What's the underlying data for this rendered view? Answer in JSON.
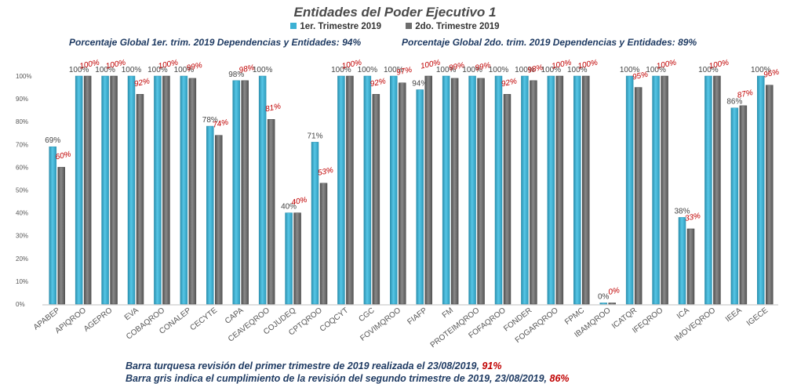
{
  "chart_data": {
    "type": "bar",
    "title": "Entidades del Poder Ejecutivo 1",
    "subtitle_left": "Porcentaje Global 1er. trim. 2019 Dependencias y Entidades: 94%",
    "subtitle_right": "Porcentaje Global  2do. trim.  2019 Dependencias y Entidades: 89%",
    "xlabel": "",
    "ylabel": "",
    "ylim": [
      0,
      100
    ],
    "y_ticks": [
      "0%",
      "10%",
      "20%",
      "30%",
      "40%",
      "50%",
      "60%",
      "70%",
      "80%",
      "90%",
      "100%"
    ],
    "grid": false,
    "legend_position": "top",
    "categories": [
      "APABEP",
      "APIQROO",
      "AGEPRO",
      "EVA",
      "COBAQROO",
      "CONALEP",
      "CECYTE",
      "CAPA",
      "CEAVEQROO",
      "COJUDEQ",
      "CPTQROO",
      "COQCYT",
      "CGC",
      "FOVIMQROO",
      "FIAFP",
      "FM",
      "PROTEIMQROO",
      "FOFAQROO",
      "FONDER",
      "FOGARQROO",
      "FPMC",
      "IBAMQROO",
      "ICATQR",
      "IFEQROO",
      "ICA",
      "IMOVEQROO",
      "IEEA",
      "IGECE"
    ],
    "series": [
      {
        "name": "1er. Trimestre 2019",
        "color": "#3cb1d4",
        "values": [
          69,
          100,
          100,
          100,
          100,
          100,
          78,
          98,
          100,
          40,
          71,
          100,
          100,
          100,
          94,
          100,
          100,
          100,
          100,
          100,
          100,
          0,
          100,
          100,
          38,
          100,
          86,
          100
        ],
        "labels": [
          "69%",
          "100%",
          "100%",
          "100%",
          "100%",
          "100%",
          "78%",
          "98%",
          "100%",
          "40%",
          "71%",
          "100%",
          "100%",
          "100%",
          "94%",
          "100%",
          "100%",
          "100%",
          "100%",
          "100%",
          "100%",
          "0%",
          "100%",
          "100%",
          "38%",
          "100%",
          "86%",
          "100%"
        ]
      },
      {
        "name": "2do. Trimestre 2019",
        "color": "#6d6d6d",
        "values": [
          60,
          100,
          100,
          92,
          100,
          99,
          74,
          98,
          81,
          40,
          53,
          100,
          92,
          97,
          100,
          99,
          99,
          92,
          98,
          100,
          100,
          0,
          95,
          100,
          33,
          100,
          87,
          96
        ],
        "labels": [
          "60%",
          "100%",
          "100%",
          "92%",
          "100%",
          "99%",
          "74%",
          "98%",
          "81%",
          "40%",
          "53%",
          "100%",
          "92%",
          "97%",
          "100%",
          "99%",
          "99%",
          "92%",
          "98%",
          "100%",
          "100%",
          "0%",
          "95%",
          "100%",
          "33%",
          "100%",
          "87%",
          "96%"
        ]
      }
    ]
  },
  "notes": {
    "line1_text": "Barra turquesa revisión del primer trimestre de 2019 realizada el  23/08/2019, ",
    "line1_value": "91%",
    "line2_text": "Barra gris indica el cumplimiento de la revisión del segundo trimestre de 2019,  23/08/2019,  ",
    "line2_value": "86%"
  }
}
